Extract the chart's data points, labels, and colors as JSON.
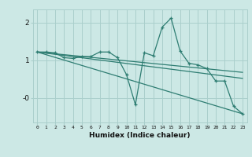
{
  "xlabel": "Humidex (Indice chaleur)",
  "bg_color": "#cce8e5",
  "grid_color": "#aacfcc",
  "line_color": "#2e7d72",
  "xlim": [
    -0.5,
    23.5
  ],
  "ylim": [
    -0.65,
    2.35
  ],
  "series": [
    {
      "x": [
        0,
        1,
        2,
        3,
        4,
        5,
        6,
        7,
        8,
        9,
        10,
        11,
        12,
        13,
        14,
        15,
        16,
        17,
        18,
        19,
        20,
        21,
        22,
        23
      ],
      "y": [
        1.22,
        1.22,
        1.2,
        1.07,
        1.05,
        1.1,
        1.1,
        1.22,
        1.22,
        1.07,
        0.62,
        -0.18,
        1.2,
        1.12,
        1.88,
        2.12,
        1.25,
        0.92,
        0.88,
        0.78,
        0.45,
        0.45,
        -0.22,
        -0.42
      ],
      "marker": "+"
    },
    {
      "x": [
        0,
        23
      ],
      "y": [
        1.22,
        -0.42
      ],
      "marker": null
    },
    {
      "x": [
        0,
        23
      ],
      "y": [
        1.22,
        0.52
      ],
      "marker": null
    },
    {
      "x": [
        0,
        23
      ],
      "y": [
        1.22,
        0.68
      ],
      "marker": null
    }
  ]
}
